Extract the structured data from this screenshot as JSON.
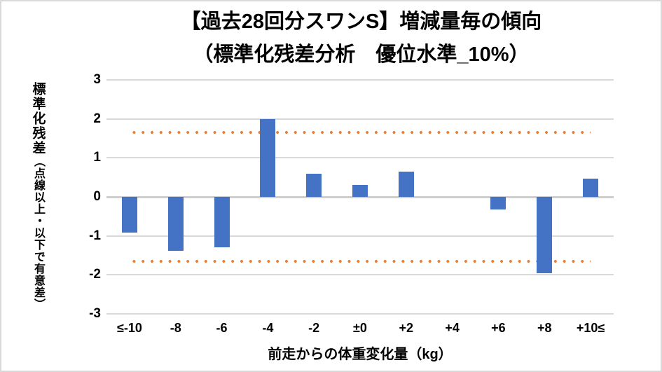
{
  "chart_data": {
    "type": "bar",
    "title_line1": "【過去28回分スワンS】増減量毎の傾向",
    "title_line2": "（標準化残差分析　優位水準_10%）",
    "categories": [
      "≤-10",
      "-8",
      "-6",
      "-4",
      "-2",
      "±0",
      "+2",
      "+4",
      "+6",
      "+8",
      "+10≤"
    ],
    "values": [
      -0.92,
      -1.38,
      -1.3,
      2.0,
      0.6,
      0.31,
      0.65,
      0,
      -0.33,
      -1.95,
      0.47
    ],
    "xlabel": "前走からの体重変化量（kg）",
    "ylabel_main": "標準化残差",
    "ylabel_sub": "（点線以上・以下で有意差）",
    "ylim": [
      -3,
      3
    ],
    "yticks": [
      3,
      2,
      1,
      0,
      -1,
      -2,
      -3
    ],
    "threshold_upper": 1.645,
    "threshold_lower": -1.645,
    "grid": true,
    "legend": "none",
    "colors": {
      "bar": "#4472C4",
      "threshold_dots": "#ED7D31",
      "gridline": "#D9D9D9",
      "axis_text": "#000000",
      "frame_border": "#D9D9D9",
      "background": "#FFFFFF"
    }
  }
}
